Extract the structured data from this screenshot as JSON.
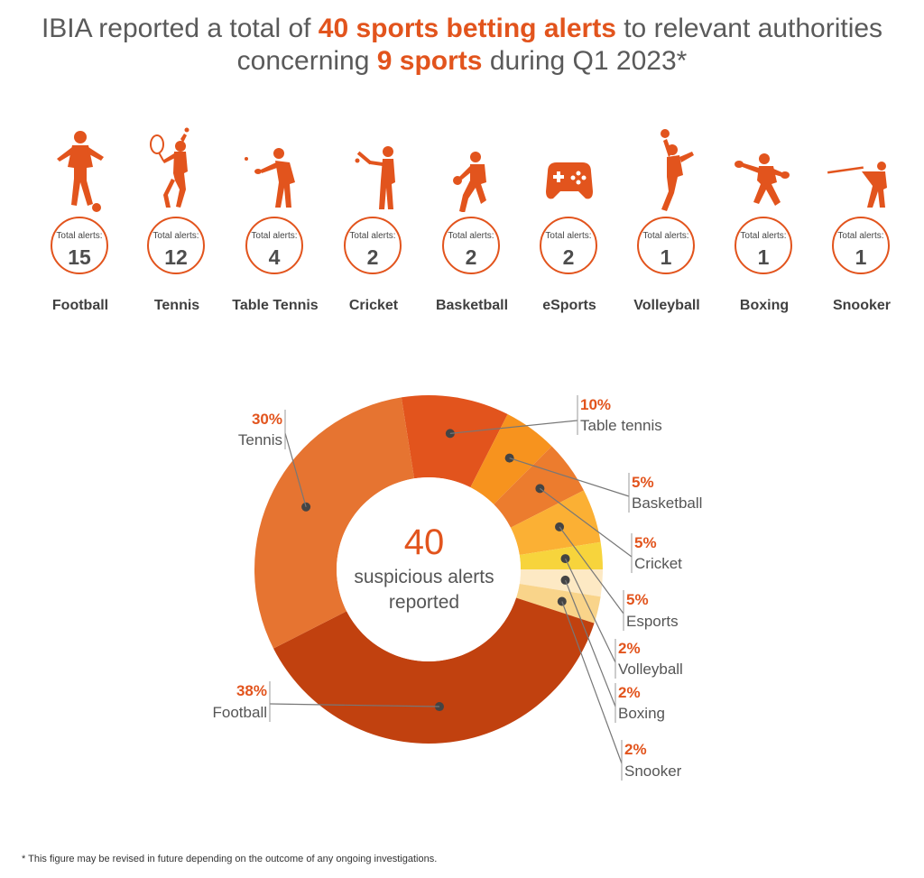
{
  "title": {
    "line1_pre": "IBIA reported a total of ",
    "line1_hl": "40 sports betting alerts",
    "line1_post": " to relevant authorities",
    "line2_pre": "concerning ",
    "line2_hl": "9 sports",
    "line2_post": " during Q1 2023*"
  },
  "accent_color": "#e2541d",
  "sports": [
    {
      "name": "Football",
      "label": "Total alerts:",
      "value": "15",
      "icon": "football-player-icon"
    },
    {
      "name": "Tennis",
      "label": "Total alerts:",
      "value": "12",
      "icon": "tennis-player-icon"
    },
    {
      "name": "Table Tennis",
      "label": "Total alerts:",
      "value": "4",
      "icon": "table-tennis-player-icon"
    },
    {
      "name": "Cricket",
      "label": "Total alerts:",
      "value": "2",
      "icon": "cricket-player-icon"
    },
    {
      "name": "Basketball",
      "label": "Total alerts:",
      "value": "2",
      "icon": "basketball-player-icon"
    },
    {
      "name": "eSports",
      "label": "Total alerts:",
      "value": "2",
      "icon": "gamepad-icon"
    },
    {
      "name": "Volleyball",
      "label": "Total alerts:",
      "value": "1",
      "icon": "volleyball-player-icon"
    },
    {
      "name": "Boxing",
      "label": "Total alerts:",
      "value": "1",
      "icon": "boxer-icon"
    },
    {
      "name": "Snooker",
      "label": "Total alerts:",
      "value": "1",
      "icon": "snooker-player-icon"
    }
  ],
  "chart_data": {
    "type": "pie",
    "center_value": "40",
    "center_text": [
      "suspicious alerts",
      "reported"
    ],
    "slices": [
      {
        "name": "Table tennis",
        "label": "10%",
        "value": 10,
        "color": "#e2541d"
      },
      {
        "name": "Basketball",
        "label": "5%",
        "value": 5,
        "color": "#f7931e"
      },
      {
        "name": "Cricket",
        "label": "5%",
        "value": 5,
        "color": "#ec7c2e"
      },
      {
        "name": "Esports",
        "label": "5%",
        "value": 5,
        "color": "#fbb034"
      },
      {
        "name": "Volleyball",
        "label": "2%",
        "value": 2.5,
        "color": "#f7d43c"
      },
      {
        "name": "Boxing",
        "label": "2%",
        "value": 2.5,
        "color": "#fde9c4"
      },
      {
        "name": "Snooker",
        "label": "2%",
        "value": 2.5,
        "color": "#f9d48a"
      },
      {
        "name": "Football",
        "label": "38%",
        "value": 37.5,
        "color": "#c1410f"
      },
      {
        "name": "Tennis",
        "label": "30%",
        "value": 30,
        "color": "#e67431"
      }
    ]
  },
  "footnote": "* This figure may be revised in future depending on the outcome of any ongoing investigations."
}
